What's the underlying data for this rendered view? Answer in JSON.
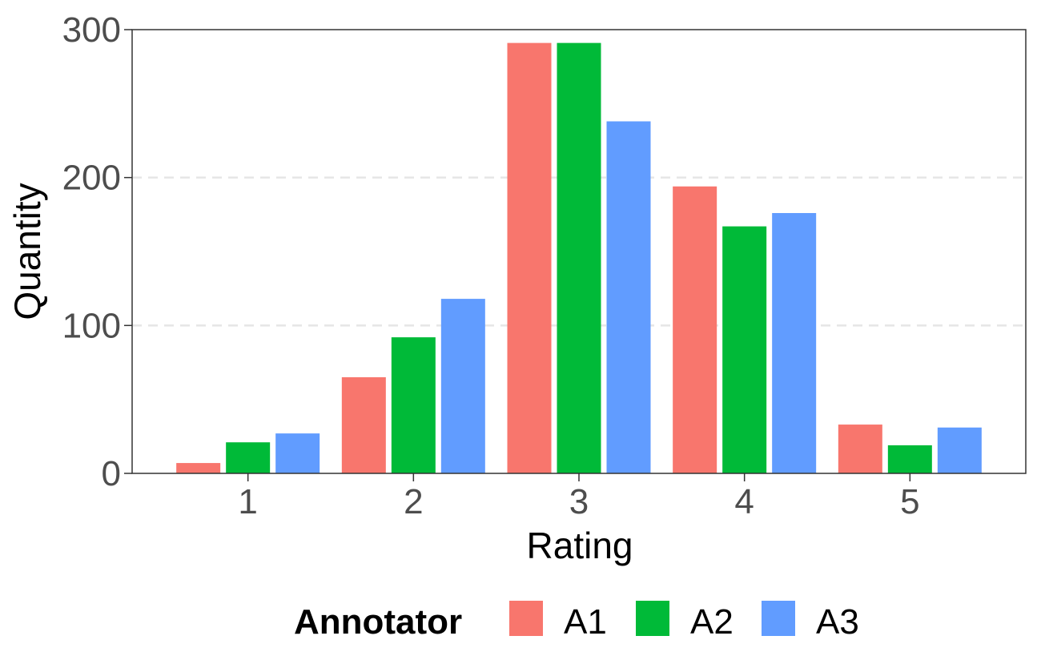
{
  "chart_data": {
    "type": "bar",
    "xlabel": "Rating",
    "ylabel": "Quantity",
    "categories": [
      "1",
      "2",
      "3",
      "4",
      "5"
    ],
    "y_ticks": [
      "0",
      "100",
      "200",
      "300"
    ],
    "ylim": [
      0,
      300
    ],
    "grid": "horizontal dashed minor/major lines",
    "legend": {
      "title": "Annotator",
      "placement": "bottom"
    },
    "series": [
      {
        "name": "A1",
        "color": "#F8766D",
        "values": [
          7,
          65,
          291,
          194,
          33
        ]
      },
      {
        "name": "A2",
        "color": "#00BA38",
        "values": [
          21,
          92,
          291,
          167,
          19
        ]
      },
      {
        "name": "A3",
        "color": "#619CFF",
        "values": [
          27,
          118,
          238,
          176,
          31
        ]
      }
    ]
  }
}
